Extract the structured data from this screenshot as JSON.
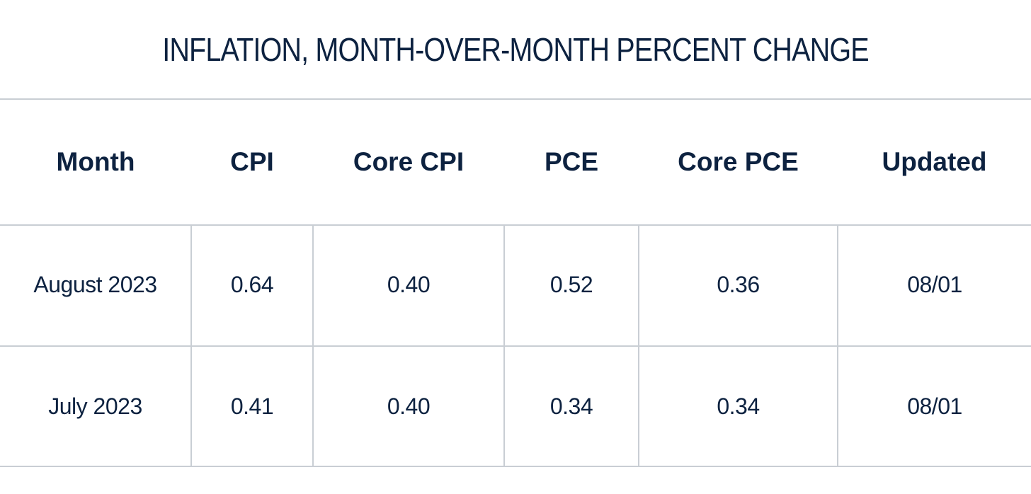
{
  "title": "INFLATION, MONTH-OVER-MONTH PERCENT CHANGE",
  "colors": {
    "text": "#0d2240",
    "rule": "#c9ced4",
    "background": "#ffffff"
  },
  "table": {
    "headers": [
      "Month",
      "CPI",
      "Core CPI",
      "PCE",
      "Core PCE",
      "Updated"
    ],
    "rows": [
      [
        "August 2023",
        "0.64",
        "0.40",
        "0.52",
        "0.36",
        "08/01"
      ],
      [
        "July 2023",
        "0.41",
        "0.40",
        "0.34",
        "0.34",
        "08/01"
      ]
    ]
  }
}
